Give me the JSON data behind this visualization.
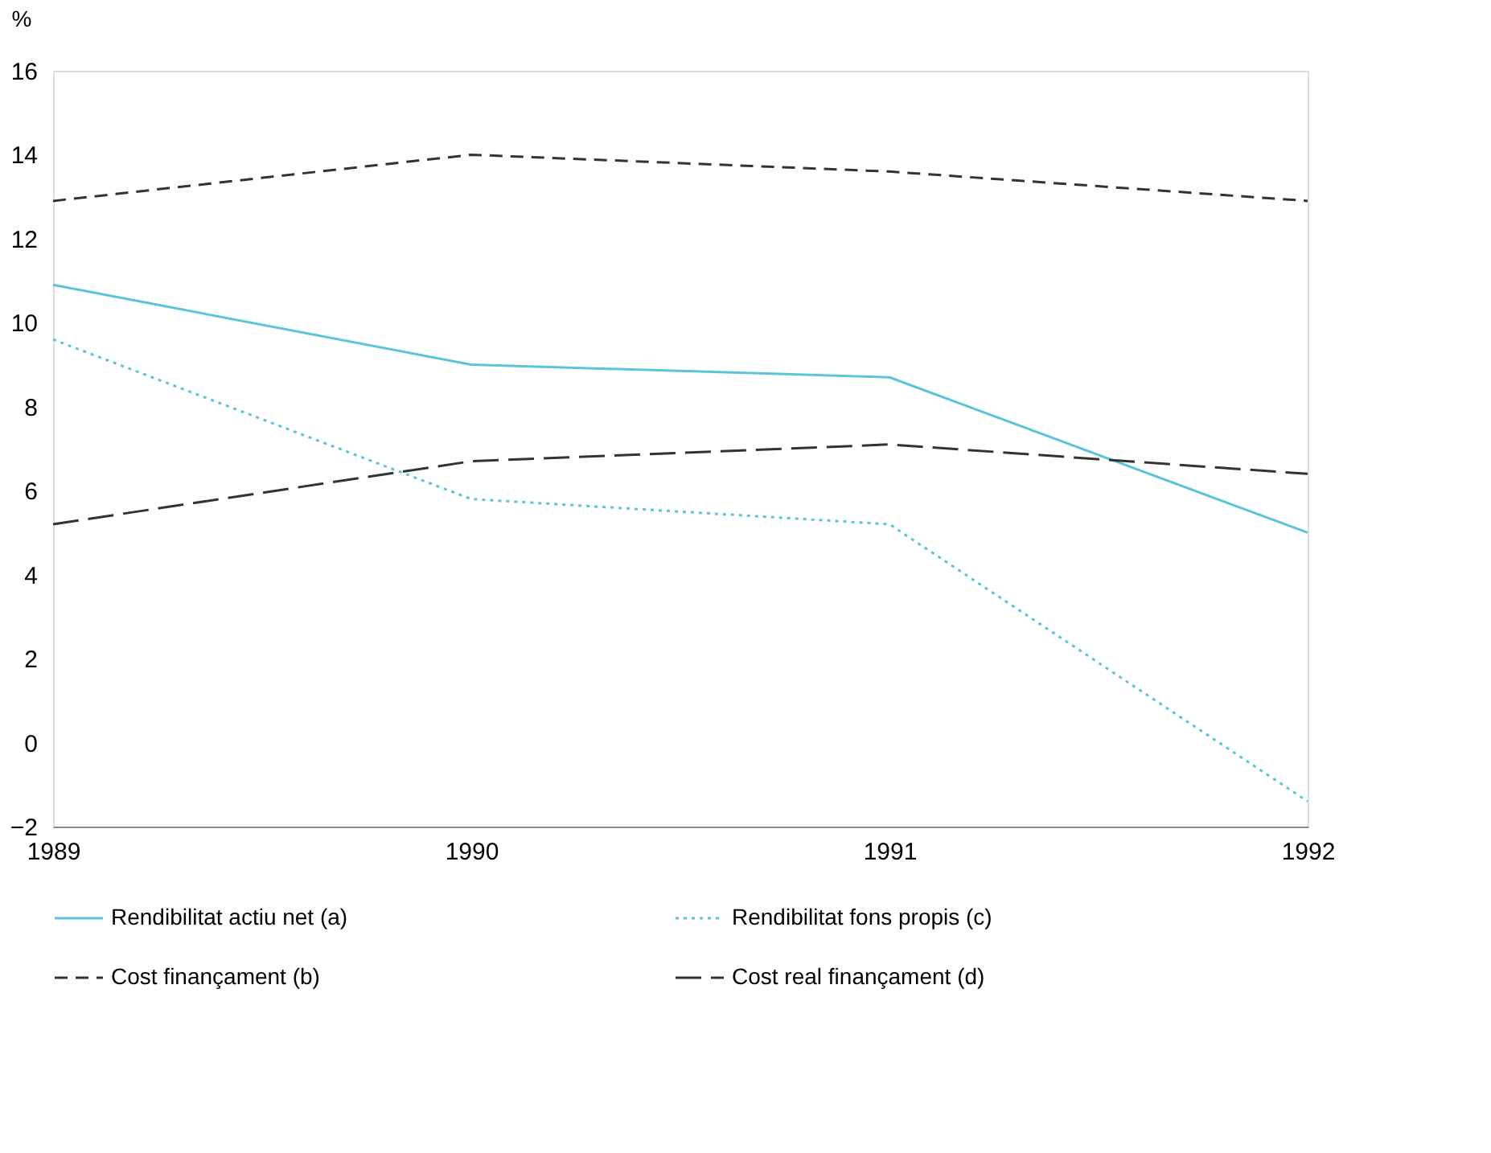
{
  "chart_data": {
    "type": "line",
    "ylabel": "%",
    "categories": [
      "1989",
      "1990",
      "1991",
      "1992"
    ],
    "series": [
      {
        "name": "Rendibilitat actiu net (a)",
        "color": "#5bc4d8",
        "line_style": "solid",
        "values": [
          10.9,
          9.0,
          8.7,
          5.0
        ]
      },
      {
        "name": "Rendibilitat fons propis (c)",
        "color": "#5bc4d8",
        "line_style": "dotted",
        "values": [
          9.6,
          5.8,
          5.2,
          -1.4
        ]
      },
      {
        "name": "Cost finançament (b)",
        "color": "#333333",
        "line_style": "dashed",
        "values": [
          12.9,
          14.0,
          13.6,
          12.9
        ]
      },
      {
        "name": "Cost real finançament (d)",
        "color": "#333333",
        "line_style": "dashed",
        "values": [
          5.2,
          6.7,
          7.1,
          6.4
        ]
      }
    ],
    "ylim": [
      -2,
      16
    ],
    "yticks": [
      -2,
      0,
      2,
      4,
      6,
      8,
      10,
      12,
      14,
      16
    ],
    "grid": false,
    "legend": "bottom",
    "marker": "none"
  }
}
